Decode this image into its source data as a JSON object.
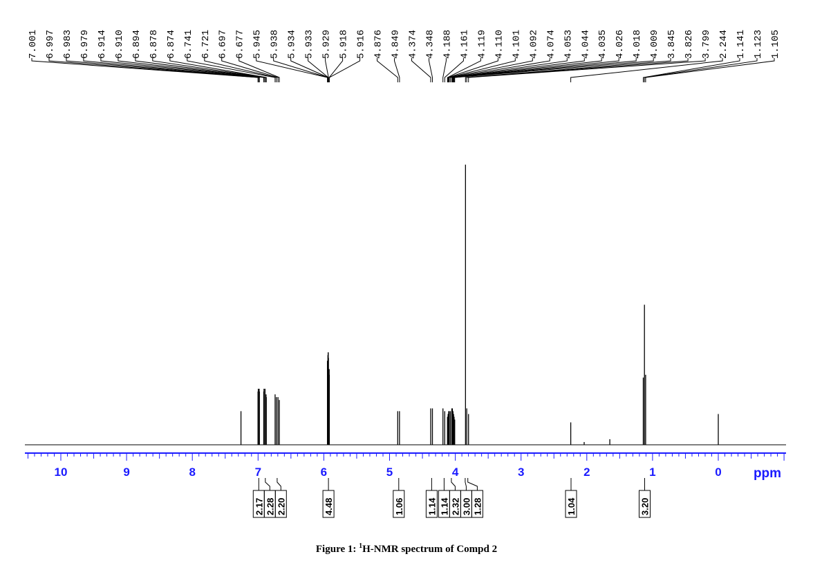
{
  "figure": {
    "caption_prefix": "Figure 1: ",
    "caption_sup": "1",
    "caption_rest": "H-NMR spectrum of Compd 2"
  },
  "chart_data": {
    "type": "line",
    "xlabel": "ppm",
    "x_axis": {
      "min": -1.0,
      "max": 10.5,
      "reversed": true,
      "major_ticks": [
        10,
        9,
        8,
        7,
        6,
        5,
        4,
        3,
        2,
        1,
        0
      ],
      "minor_step": 0.1
    },
    "colors": {
      "axis": "#1a1aff",
      "trace": "#000000",
      "labels": "#000000"
    },
    "peak_labels": [
      "7.001",
      "6.997",
      "6.983",
      "6.979",
      "6.914",
      "6.910",
      "6.894",
      "6.878",
      "6.874",
      "6.741",
      "6.721",
      "6.697",
      "6.677",
      "5.945",
      "5.938",
      "5.934",
      "5.933",
      "5.929",
      "5.918",
      "5.916",
      "4.876",
      "4.849",
      "4.374",
      "4.348",
      "4.188",
      "4.161",
      "4.119",
      "4.110",
      "4.101",
      "4.092",
      "4.074",
      "4.053",
      "4.044",
      "4.035",
      "4.026",
      "4.018",
      "4.009",
      "3.845",
      "3.826",
      "3.799",
      "2.244",
      "1.141",
      "1.123",
      "1.105"
    ],
    "peaks": [
      {
        "ppm": 7.26,
        "intensity": 0.12
      },
      {
        "ppm": 7.001,
        "intensity": 0.19
      },
      {
        "ppm": 6.997,
        "intensity": 0.2
      },
      {
        "ppm": 6.983,
        "intensity": 0.2
      },
      {
        "ppm": 6.979,
        "intensity": 0.19
      },
      {
        "ppm": 6.914,
        "intensity": 0.19
      },
      {
        "ppm": 6.91,
        "intensity": 0.2
      },
      {
        "ppm": 6.894,
        "intensity": 0.2
      },
      {
        "ppm": 6.878,
        "intensity": 0.18
      },
      {
        "ppm": 6.874,
        "intensity": 0.17
      },
      {
        "ppm": 6.741,
        "intensity": 0.18
      },
      {
        "ppm": 6.721,
        "intensity": 0.17
      },
      {
        "ppm": 6.697,
        "intensity": 0.17
      },
      {
        "ppm": 6.677,
        "intensity": 0.16
      },
      {
        "ppm": 5.945,
        "intensity": 0.3
      },
      {
        "ppm": 5.938,
        "intensity": 0.32
      },
      {
        "ppm": 5.934,
        "intensity": 0.33
      },
      {
        "ppm": 5.933,
        "intensity": 0.33
      },
      {
        "ppm": 5.929,
        "intensity": 0.31
      },
      {
        "ppm": 5.918,
        "intensity": 0.27
      },
      {
        "ppm": 5.916,
        "intensity": 0.25
      },
      {
        "ppm": 4.876,
        "intensity": 0.12
      },
      {
        "ppm": 4.849,
        "intensity": 0.12
      },
      {
        "ppm": 4.374,
        "intensity": 0.13
      },
      {
        "ppm": 4.348,
        "intensity": 0.13
      },
      {
        "ppm": 4.188,
        "intensity": 0.13
      },
      {
        "ppm": 4.161,
        "intensity": 0.12
      },
      {
        "ppm": 4.119,
        "intensity": 0.1
      },
      {
        "ppm": 4.11,
        "intensity": 0.11
      },
      {
        "ppm": 4.101,
        "intensity": 0.12
      },
      {
        "ppm": 4.092,
        "intensity": 0.12
      },
      {
        "ppm": 4.074,
        "intensity": 0.12
      },
      {
        "ppm": 4.053,
        "intensity": 0.13
      },
      {
        "ppm": 4.044,
        "intensity": 0.13
      },
      {
        "ppm": 4.035,
        "intensity": 0.12
      },
      {
        "ppm": 4.026,
        "intensity": 0.11
      },
      {
        "ppm": 4.018,
        "intensity": 0.1
      },
      {
        "ppm": 4.009,
        "intensity": 0.09
      },
      {
        "ppm": 3.845,
        "intensity": 1.0
      },
      {
        "ppm": 3.826,
        "intensity": 0.13
      },
      {
        "ppm": 3.799,
        "intensity": 0.11
      },
      {
        "ppm": 2.244,
        "intensity": 0.08
      },
      {
        "ppm": 2.04,
        "intensity": 0.01
      },
      {
        "ppm": 1.65,
        "intensity": 0.02
      },
      {
        "ppm": 1.141,
        "intensity": 0.24
      },
      {
        "ppm": 1.123,
        "intensity": 0.5
      },
      {
        "ppm": 1.105,
        "intensity": 0.25
      },
      {
        "ppm": 0.0,
        "intensity": 0.11
      }
    ],
    "integrals": [
      {
        "value": "2.17",
        "ppm": 6.99
      },
      {
        "value": "2.28",
        "ppm": 6.89
      },
      {
        "value": "2.20",
        "ppm": 6.71
      },
      {
        "value": "4.48",
        "ppm": 5.93
      },
      {
        "value": "1.06",
        "ppm": 4.86
      },
      {
        "value": "1.14",
        "ppm": 4.36
      },
      {
        "value": "1.14",
        "ppm": 4.17
      },
      {
        "value": "2.32",
        "ppm": 4.06
      },
      {
        "value": "3.00",
        "ppm": 3.85
      },
      {
        "value": "1.28",
        "ppm": 3.81
      },
      {
        "value": "1.04",
        "ppm": 2.24
      },
      {
        "value": "3.20",
        "ppm": 1.12
      }
    ]
  }
}
